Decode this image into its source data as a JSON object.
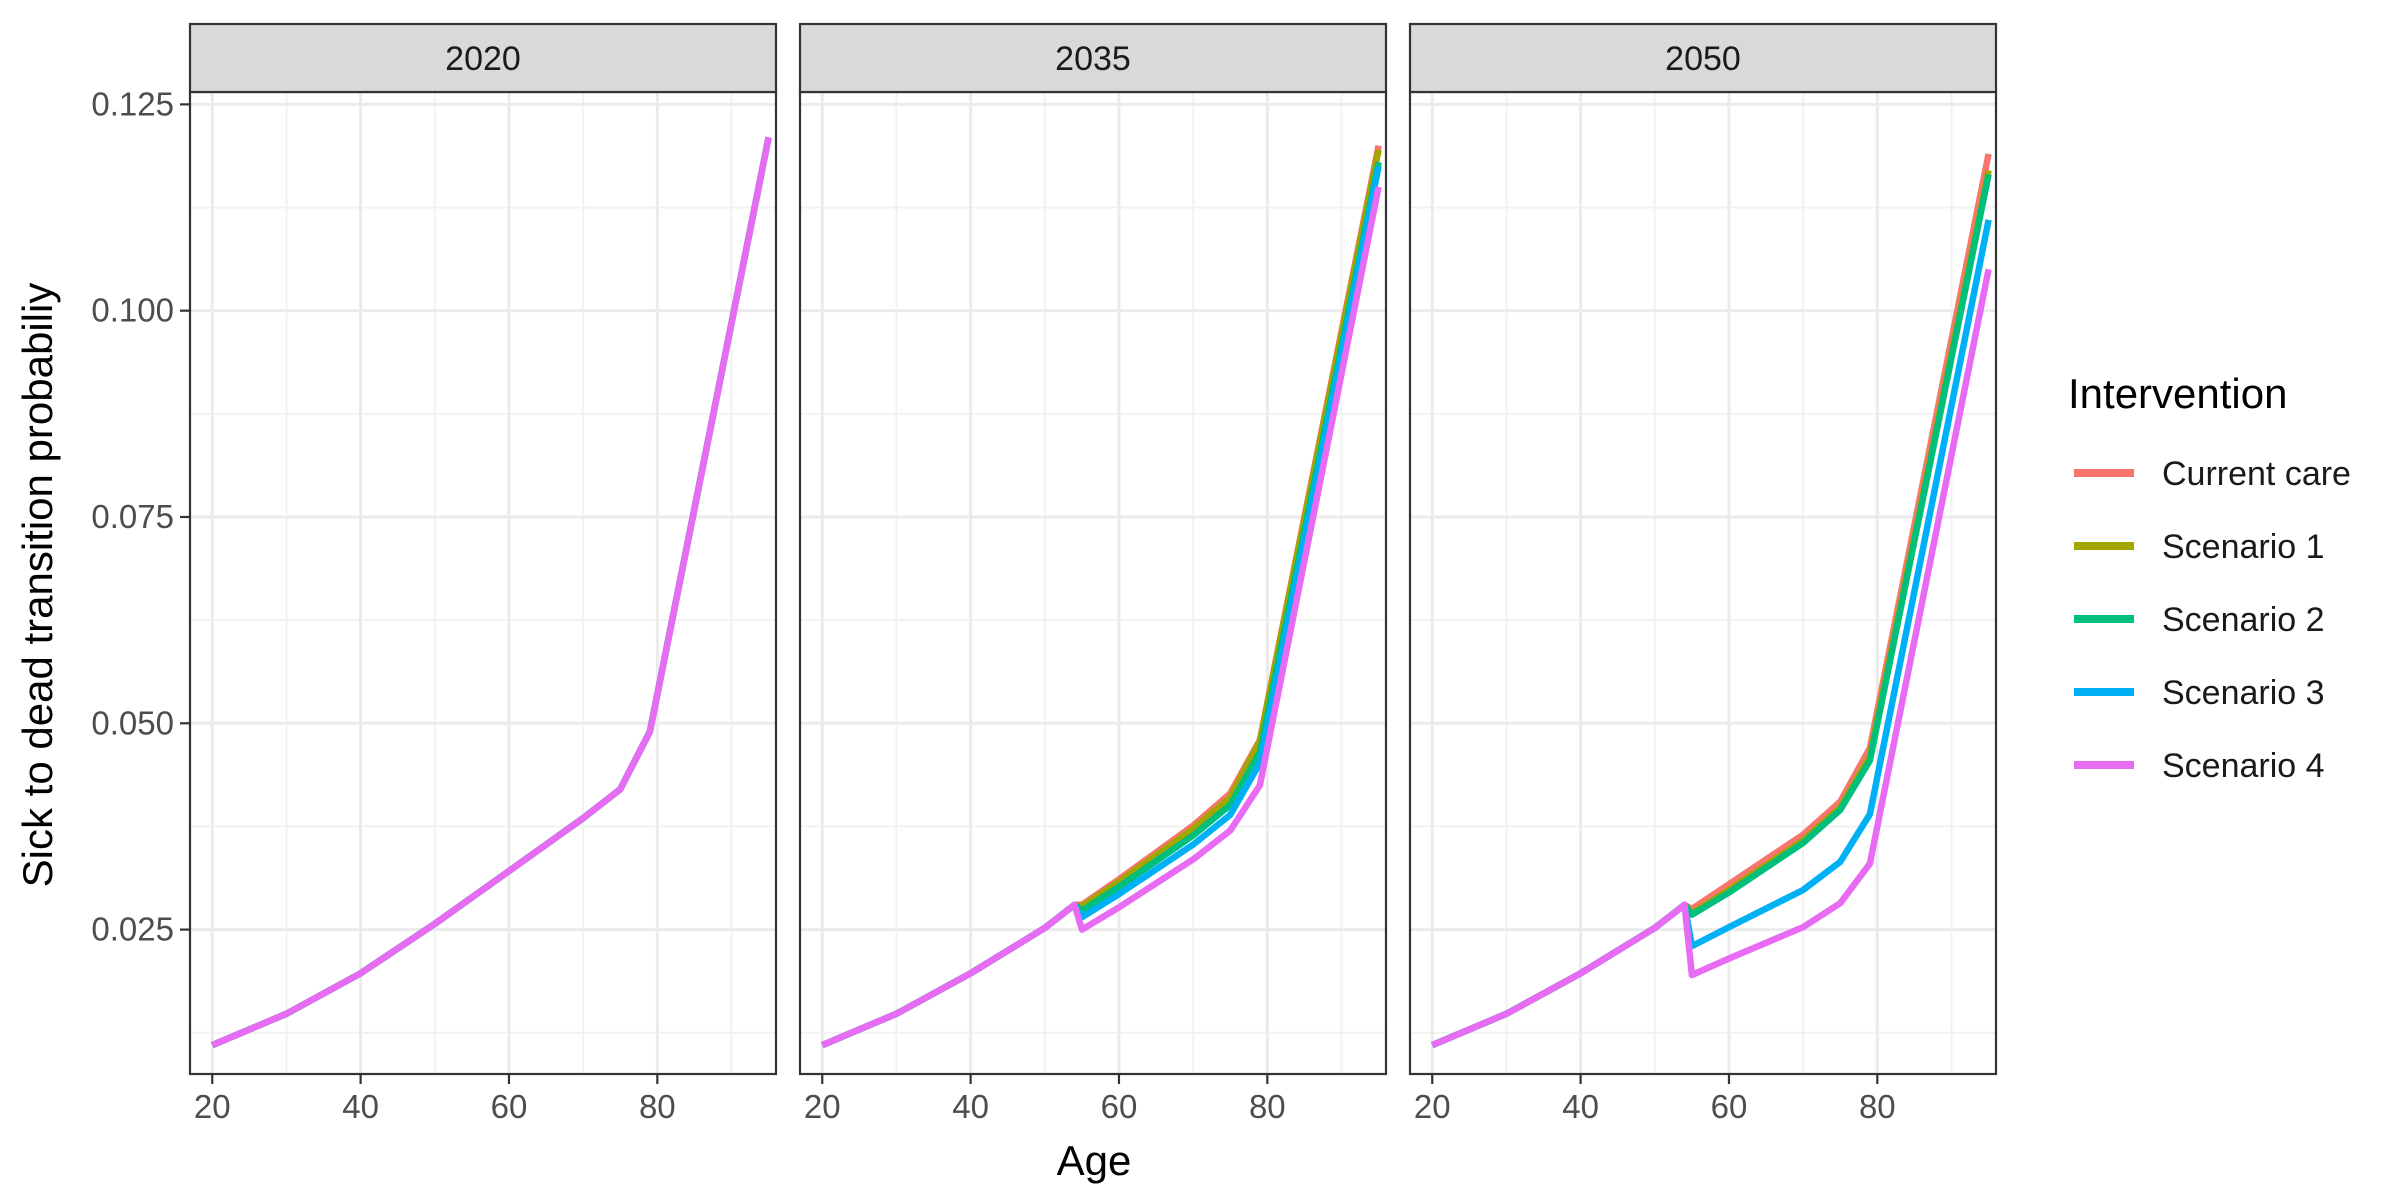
{
  "chart_data": {
    "type": "line",
    "facet_variable": "year",
    "facets": [
      "2020",
      "2035",
      "2050"
    ],
    "xlabel": "Age",
    "ylabel": "Sick to dead transition probabiliy",
    "x_ticks": [
      20,
      40,
      60,
      80
    ],
    "y_ticks": [
      0.025,
      0.05,
      0.075,
      0.1,
      0.125
    ],
    "y_tick_labels": [
      "0.025",
      "0.050",
      "0.075",
      "0.100",
      "0.125"
    ],
    "xlim": [
      17,
      96
    ],
    "ylim": [
      0.0075,
      0.1265
    ],
    "grid": true,
    "legend": {
      "title": "Intervention",
      "position": "right"
    },
    "series_styles": [
      {
        "name": "Current care",
        "color": "#F8766D"
      },
      {
        "name": "Scenario 1",
        "color": "#A3A500"
      },
      {
        "name": "Scenario 2",
        "color": "#00BF7D"
      },
      {
        "name": "Scenario 3",
        "color": "#00B0F6"
      },
      {
        "name": "Scenario 4",
        "color": "#E76BF3"
      }
    ],
    "panels": [
      {
        "facet": "2020",
        "series": [
          {
            "name": "Current care",
            "x": [
              20,
              30,
              40,
              50,
              60,
              70,
              75,
              79,
              95
            ],
            "y": [
              0.011,
              0.0148,
              0.0197,
              0.0257,
              0.0321,
              0.0385,
              0.042,
              0.049,
              0.121
            ]
          },
          {
            "name": "Scenario 1",
            "x": [
              20,
              30,
              40,
              50,
              60,
              70,
              75,
              79,
              95
            ],
            "y": [
              0.011,
              0.0148,
              0.0197,
              0.0257,
              0.0321,
              0.0385,
              0.042,
              0.049,
              0.121
            ]
          },
          {
            "name": "Scenario 2",
            "x": [
              20,
              30,
              40,
              50,
              60,
              70,
              75,
              79,
              95
            ],
            "y": [
              0.011,
              0.0148,
              0.0197,
              0.0257,
              0.0321,
              0.0385,
              0.042,
              0.049,
              0.121
            ]
          },
          {
            "name": "Scenario 3",
            "x": [
              20,
              30,
              40,
              50,
              60,
              70,
              75,
              79,
              95
            ],
            "y": [
              0.011,
              0.0148,
              0.0197,
              0.0257,
              0.0321,
              0.0385,
              0.042,
              0.049,
              0.121
            ]
          },
          {
            "name": "Scenario 4",
            "x": [
              20,
              30,
              40,
              50,
              60,
              70,
              75,
              79,
              95
            ],
            "y": [
              0.011,
              0.0148,
              0.0197,
              0.0257,
              0.0321,
              0.0385,
              0.042,
              0.049,
              0.121
            ]
          }
        ]
      },
      {
        "facet": "2035",
        "series": [
          {
            "name": "Current care",
            "x": [
              20,
              30,
              40,
              50,
              54,
              55,
              60,
              70,
              75,
              79,
              95
            ],
            "y": [
              0.011,
              0.0148,
              0.0197,
              0.0252,
              0.028,
              0.028,
              0.0311,
              0.0376,
              0.0415,
              0.048,
              0.12
            ]
          },
          {
            "name": "Scenario 1",
            "x": [
              20,
              30,
              40,
              50,
              54,
              55,
              60,
              70,
              75,
              79,
              95
            ],
            "y": [
              0.011,
              0.0148,
              0.0197,
              0.0252,
              0.028,
              0.0278,
              0.0308,
              0.0372,
              0.041,
              0.0478,
              0.1195
            ]
          },
          {
            "name": "Scenario 2",
            "x": [
              20,
              30,
              40,
              50,
              54,
              55,
              60,
              70,
              75,
              79,
              95
            ],
            "y": [
              0.011,
              0.0148,
              0.0197,
              0.0252,
              0.028,
              0.0273,
              0.0302,
              0.0364,
              0.0401,
              0.0465,
              0.118
            ]
          },
          {
            "name": "Scenario 3",
            "x": [
              20,
              30,
              40,
              50,
              54,
              55,
              60,
              70,
              75,
              79,
              95
            ],
            "y": [
              0.011,
              0.0148,
              0.0197,
              0.0252,
              0.028,
              0.0265,
              0.0293,
              0.0353,
              0.0389,
              0.0452,
              0.1175
            ]
          },
          {
            "name": "Scenario 4",
            "x": [
              20,
              30,
              40,
              50,
              54,
              55,
              60,
              70,
              75,
              79,
              95
            ],
            "y": [
              0.011,
              0.0148,
              0.0197,
              0.0252,
              0.028,
              0.025,
              0.0277,
              0.0335,
              0.037,
              0.0425,
              0.115
            ]
          }
        ]
      },
      {
        "facet": "2050",
        "series": [
          {
            "name": "Current care",
            "x": [
              20,
              30,
              40,
              50,
              54,
              55,
              60,
              70,
              75,
              79,
              95
            ],
            "y": [
              0.011,
              0.0148,
              0.0197,
              0.0252,
              0.028,
              0.0275,
              0.0305,
              0.0365,
              0.0405,
              0.047,
              0.119
            ]
          },
          {
            "name": "Scenario 1",
            "x": [
              20,
              30,
              40,
              50,
              54,
              55,
              60,
              70,
              75,
              79,
              95
            ],
            "y": [
              0.011,
              0.0148,
              0.0197,
              0.0252,
              0.028,
              0.027,
              0.0298,
              0.0358,
              0.0398,
              0.046,
              0.117
            ]
          },
          {
            "name": "Scenario 2",
            "x": [
              20,
              30,
              40,
              50,
              54,
              55,
              60,
              70,
              75,
              79,
              95
            ],
            "y": [
              0.011,
              0.0148,
              0.0197,
              0.0252,
              0.028,
              0.0268,
              0.0295,
              0.0355,
              0.0395,
              0.0455,
              0.1165
            ]
          },
          {
            "name": "Scenario 3",
            "x": [
              20,
              30,
              40,
              50,
              54,
              55,
              60,
              70,
              75,
              79,
              95
            ],
            "y": [
              0.011,
              0.0148,
              0.0197,
              0.0252,
              0.028,
              0.023,
              0.0253,
              0.0298,
              0.0332,
              0.039,
              0.111
            ]
          },
          {
            "name": "Scenario 4",
            "x": [
              20,
              30,
              40,
              50,
              54,
              55,
              60,
              70,
              75,
              79,
              95
            ],
            "y": [
              0.011,
              0.0148,
              0.0197,
              0.0252,
              0.028,
              0.0195,
              0.0215,
              0.0253,
              0.0282,
              0.033,
              0.105
            ]
          }
        ]
      }
    ]
  }
}
